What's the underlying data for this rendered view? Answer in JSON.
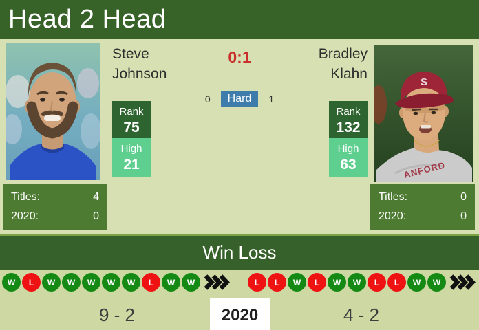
{
  "header": {
    "title": "Head 2 Head"
  },
  "matchup": {
    "h2h_score": "0:1",
    "surface": {
      "left_wins": "0",
      "name": "Hard",
      "right_wins": "1"
    }
  },
  "left_player": {
    "name": "Steve Johnson",
    "rank_label": "Rank",
    "rank": "75",
    "high_label": "High",
    "high": "21",
    "titles_label": "Titles:",
    "titles": "4",
    "year_label": "2020:",
    "year_titles": "0",
    "form": [
      "W",
      "L",
      "W",
      "W",
      "W",
      "W",
      "W",
      "L",
      "W",
      "W"
    ],
    "record": "9 - 2"
  },
  "right_player": {
    "name": "Bradley Klahn",
    "rank_label": "Rank",
    "rank": "132",
    "high_label": "High",
    "high": "63",
    "titles_label": "Titles:",
    "titles": "0",
    "year_label": "2020:",
    "year_titles": "0",
    "form": [
      "L",
      "L",
      "W",
      "L",
      "W",
      "W",
      "L",
      "L",
      "W",
      "W"
    ],
    "record": "4 - 2",
    "photo_cap_letter": "S",
    "photo_shirt_text": "ANFORD"
  },
  "winloss": {
    "title": "Win Loss",
    "year": "2020"
  },
  "colors": {
    "header_green": "#376329",
    "panel_green": "#4d7b31",
    "rank_dark_green": "#2e6430",
    "high_mint": "#5ecf8f",
    "bg_top": "#d6e0b2",
    "bg_bottom": "#cdd8a2",
    "win_green": "#148a14",
    "loss_red": "#ee1212",
    "score_red": "#c9302c",
    "surface_blue": "#3d7cab"
  }
}
